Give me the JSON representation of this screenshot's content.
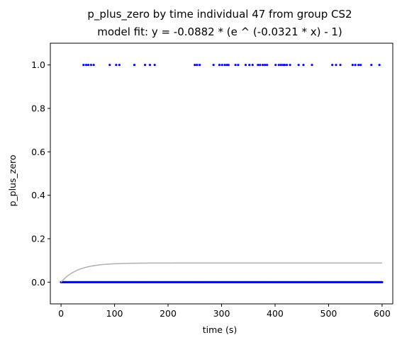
{
  "chart_data": {
    "type": "scatter",
    "title": "p_plus_zero by time individual 47 from group CS2",
    "subtitle": "model fit: y = -0.0882 * (e ^ (-0.0321 * x) - 1)",
    "xlabel": "time (s)",
    "ylabel": "p_plus_zero",
    "xlim": [
      -20,
      620
    ],
    "ylim": [
      -0.1,
      1.1
    ],
    "x_ticks": [
      0,
      100,
      200,
      300,
      400,
      500,
      600
    ],
    "x_tick_labels": [
      "0",
      "100",
      "200",
      "300",
      "400",
      "500",
      "600"
    ],
    "y_ticks": [
      0.0,
      0.2,
      0.4,
      0.6,
      0.8,
      1.0
    ],
    "y_tick_labels": [
      "0.0",
      "0.2",
      "0.4",
      "0.6",
      "0.8",
      "1.0"
    ],
    "grid": false,
    "legend": "none",
    "series": [
      {
        "kind": "points",
        "color": "#0000ff",
        "points": {
          "y_value": 1,
          "x": [
            42,
            47,
            51,
            56,
            61,
            91,
            103,
            109,
            137,
            157,
            166,
            175,
            250,
            254,
            259,
            285,
            296,
            301,
            306,
            310,
            313,
            326,
            331,
            345,
            352,
            358,
            368,
            372,
            377,
            381,
            385,
            401,
            407,
            411,
            415,
            418,
            422,
            428,
            444,
            453,
            469,
            507,
            514,
            522,
            545,
            550,
            556,
            560,
            580,
            595
          ]
        }
      },
      {
        "kind": "points",
        "color": "#0000ff",
        "points": {
          "y_value": 0,
          "x_range": [
            0,
            600
          ],
          "x_step": 2
        }
      },
      {
        "kind": "curve",
        "color": "#b0b0b0",
        "equation": {
          "a": -0.0882,
          "b": -0.0321
        },
        "x_range": [
          0,
          600
        ]
      }
    ]
  }
}
